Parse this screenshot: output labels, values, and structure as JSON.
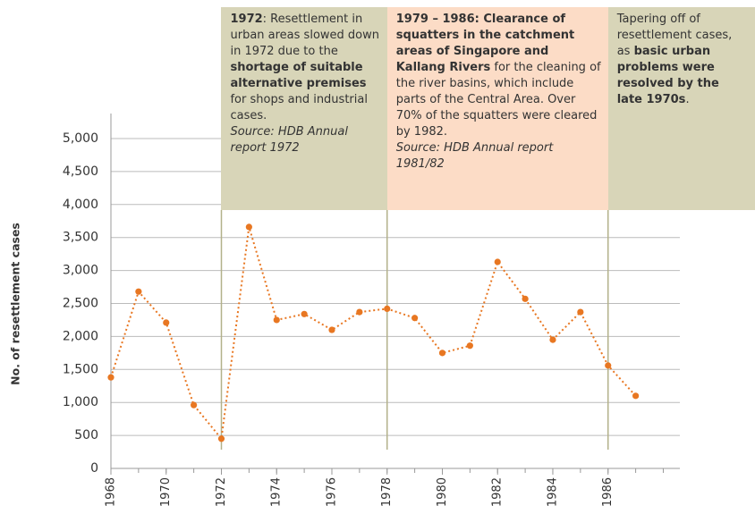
{
  "chart_data": {
    "type": "line",
    "ylabel": "No. of resettlement cases",
    "x": [
      1968,
      1969,
      1970,
      1971,
      1972,
      1973,
      1974,
      1975,
      1976,
      1977,
      1978,
      1979,
      1980,
      1981,
      1982,
      1983,
      1984,
      1985,
      1986,
      1987
    ],
    "series": [
      {
        "color": "#e87722",
        "values": [
          1380,
          2680,
          2210,
          960,
          450,
          3660,
          2250,
          2340,
          2100,
          2370,
          2420,
          2280,
          1750,
          1860,
          3130,
          2570,
          1950,
          2370,
          1560,
          1100
        ]
      }
    ],
    "xlim": [
      1968,
      1988.6
    ],
    "xticks": [
      1968,
      1970,
      1972,
      1974,
      1976,
      1978,
      1980,
      1982,
      1984,
      1986
    ],
    "ylim": [
      0,
      5000
    ],
    "yticks": [
      0,
      500,
      {
        "value": 1000,
        "label": "1,000"
      },
      {
        "value": 1500,
        "label": "1,500"
      },
      {
        "value": 2000,
        "label": "2,000"
      },
      {
        "value": 2500,
        "label": "2,500"
      },
      {
        "value": 3000,
        "label": "3,000"
      },
      {
        "value": 3500,
        "label": "3,500"
      },
      {
        "value": 4000,
        "label": "4,000"
      },
      {
        "value": 4500,
        "label": "4,500"
      },
      {
        "value": 5000,
        "label": "5,000"
      }
    ],
    "grid": true,
    "annotations": [
      {
        "x": 1972,
        "color": "#d8d5b8",
        "runs": [
          {
            "text": "1972",
            "bold": true
          },
          {
            "text": ": Resettlement in urban areas slowed down in 1972 due to the "
          },
          {
            "text": "shortage of suitable alternative premises",
            "bold": true
          },
          {
            "text": " for shops and industrial cases."
          },
          {
            "text": "Source: HDB Annual report 1972",
            "italic": true
          }
        ]
      },
      {
        "x": 1978,
        "color": "#fcdcc6",
        "runs": [
          {
            "text": "1979 – 1986: Clearance of squatters in the catchment areas of Singapore and Kallang Rivers",
            "bold": true
          },
          {
            "text": " for the cleaning of the river basins, which include parts of the Central Area. Over 70% of the squatters were cleared by 1982."
          },
          {
            "text": "Source: HDB Annual report 1981/82",
            "italic": true
          }
        ]
      },
      {
        "x": 1986,
        "color": "#d8d5b8",
        "runs": [
          {
            "text": "Tapering off of resettlement cases, as "
          },
          {
            "text": "basic urban problems were resolved by the late 1970s",
            "bold": true
          },
          {
            "text": "."
          }
        ]
      }
    ]
  }
}
